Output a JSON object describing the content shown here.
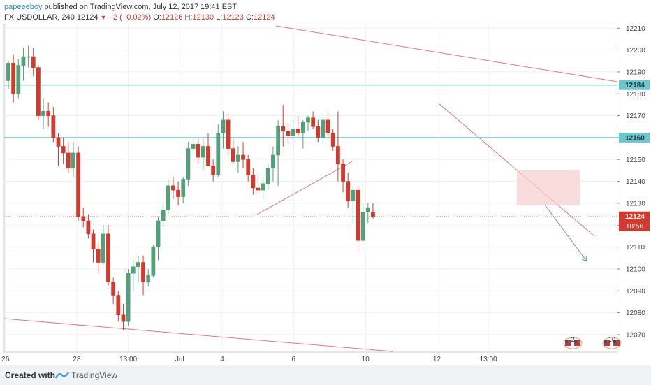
{
  "header": {
    "author": "papeeeboy",
    "published_text": "published on TradingView.com, July 12, 2017 19:41 EST",
    "symbol": "FX:USDOLLAR, 240",
    "last": "12124",
    "change": "−2 (−0.02%)",
    "o_label": "O:",
    "o_value": "12126",
    "h_label": "H:",
    "h_value": "12130",
    "l_label": "L:",
    "l_value": "12123",
    "c_label": "C:",
    "c_value": "12124"
  },
  "footer": {
    "created_with": "Created with",
    "brand": "TradingView"
  },
  "price_tags": {
    "hline1": "12184",
    "hline2": "12160",
    "last": "12124",
    "countdown": "18:56"
  },
  "event_badges": [
    "2",
    "10"
  ],
  "colors": {
    "up": "#53a07a",
    "down": "#d03b2e",
    "hline": "#6ec6cf",
    "trend": "#e07a7a",
    "projection": "#6a8fcf",
    "box": "#f6cfcf"
  },
  "chart_data": {
    "type": "candlestick",
    "symbol": "FX:USDOLLAR",
    "interval": "240",
    "y_axis": {
      "min": 12062,
      "max": 12212,
      "ticks": [
        12070,
        12080,
        12090,
        12100,
        12110,
        12120,
        12130,
        12140,
        12150,
        12160,
        12170,
        12180,
        12190,
        12200,
        12210
      ]
    },
    "x_axis": {
      "labels": [
        {
          "label": "26",
          "index": -0.6
        },
        {
          "label": "28",
          "index": 13.7
        },
        {
          "label": "13:00",
          "index": 24
        },
        {
          "label": "Jul",
          "index": 34.3
        },
        {
          "label": "4",
          "index": 42.8
        },
        {
          "label": "6",
          "index": 57.1
        },
        {
          "label": "10",
          "index": 71.5
        },
        {
          "label": "12",
          "index": 85.8
        },
        {
          "label": "13:00",
          "index": 96.1
        }
      ],
      "bars_visible": 120
    },
    "candles": [
      [
        12186,
        12195,
        12182,
        12194
      ],
      [
        12194,
        12198,
        12176,
        12180
      ],
      [
        12180,
        12196,
        12178,
        12193
      ],
      [
        12193,
        12201,
        12186,
        12197
      ],
      [
        12197,
        12202,
        12192,
        12197
      ],
      [
        12197,
        12201,
        12188,
        12192
      ],
      [
        12192,
        12193,
        12168,
        12170
      ],
      [
        12170,
        12178,
        12164,
        12172
      ],
      [
        12172,
        12176,
        12165,
        12170
      ],
      [
        12170,
        12174,
        12158,
        12160
      ],
      [
        12160,
        12162,
        12147,
        12156
      ],
      [
        12156,
        12160,
        12148,
        12153
      ],
      [
        12153,
        12158,
        12144,
        12146
      ],
      [
        12146,
        12158,
        12142,
        12153
      ],
      [
        12153,
        12156,
        12122,
        12124
      ],
      [
        12124,
        12128,
        12119,
        12122
      ],
      [
        12122,
        12125,
        12114,
        12116
      ],
      [
        12116,
        12118,
        12103,
        12109
      ],
      [
        12109,
        12112,
        12098,
        12103
      ],
      [
        12103,
        12120,
        12102,
        12116
      ],
      [
        12116,
        12120,
        12092,
        12094
      ],
      [
        12094,
        12096,
        12084,
        12088
      ],
      [
        12088,
        12090,
        12076,
        12079
      ],
      [
        12079,
        12084,
        12072,
        12076
      ],
      [
        12076,
        12100,
        12074,
        12098
      ],
      [
        12098,
        12104,
        12090,
        12101
      ],
      [
        12101,
        12106,
        12094,
        12103
      ],
      [
        12103,
        12106,
        12088,
        12094
      ],
      [
        12094,
        12100,
        12092,
        12097
      ],
      [
        12097,
        12111,
        12096,
        12110
      ],
      [
        12110,
        12124,
        12104,
        12122
      ],
      [
        12122,
        12130,
        12119,
        12127
      ],
      [
        12127,
        12141,
        12125,
        12138
      ],
      [
        12138,
        12142,
        12132,
        12136
      ],
      [
        12136,
        12140,
        12129,
        12133
      ],
      [
        12133,
        12142,
        12130,
        12141
      ],
      [
        12141,
        12158,
        12138,
        12155
      ],
      [
        12155,
        12160,
        12150,
        12157
      ],
      [
        12157,
        12160,
        12148,
        12151
      ],
      [
        12151,
        12160,
        12145,
        12156
      ],
      [
        12156,
        12162,
        12148,
        12147
      ],
      [
        12147,
        12150,
        12140,
        12143
      ],
      [
        12143,
        12166,
        12142,
        12162
      ],
      [
        12162,
        12172,
        12155,
        12168
      ],
      [
        12168,
        12171,
        12152,
        12155
      ],
      [
        12155,
        12160,
        12148,
        12149
      ],
      [
        12149,
        12156,
        12144,
        12152
      ],
      [
        12152,
        12158,
        12146,
        12150
      ],
      [
        12150,
        12152,
        12140,
        12143
      ],
      [
        12143,
        12146,
        12134,
        12137
      ],
      [
        12137,
        12143,
        12134,
        12136
      ],
      [
        12136,
        12142,
        12132,
        12139
      ],
      [
        12139,
        12148,
        12136,
        12146
      ],
      [
        12146,
        12156,
        12140,
        12152
      ],
      [
        12152,
        12168,
        12138,
        12165
      ],
      [
        12165,
        12175,
        12156,
        12163
      ],
      [
        12163,
        12166,
        12157,
        12161
      ],
      [
        12161,
        12167,
        12158,
        12164
      ],
      [
        12164,
        12170,
        12160,
        12162
      ],
      [
        12162,
        12168,
        12155,
        12167
      ],
      [
        12167,
        12170,
        12163,
        12169
      ],
      [
        12169,
        12172,
        12164,
        12165
      ],
      [
        12165,
        12168,
        12158,
        12160
      ],
      [
        12160,
        12170,
        12157,
        12168
      ],
      [
        12168,
        12172,
        12160,
        12162
      ],
      [
        12162,
        12164,
        12154,
        12156
      ],
      [
        12156,
        12172,
        12140,
        12148
      ],
      [
        12148,
        12150,
        12135,
        12140
      ],
      [
        12140,
        12144,
        12128,
        12131
      ],
      [
        12131,
        12138,
        12121,
        12136
      ],
      [
        12136,
        12138,
        12108,
        12113
      ],
      [
        12113,
        12130,
        12112,
        12126
      ],
      [
        12126,
        12130,
        12121,
        12128
      ],
      [
        12126,
        12130,
        12123,
        12124
      ]
    ],
    "horizontal_lines": [
      12184,
      12160
    ],
    "last_price": 12124
  }
}
